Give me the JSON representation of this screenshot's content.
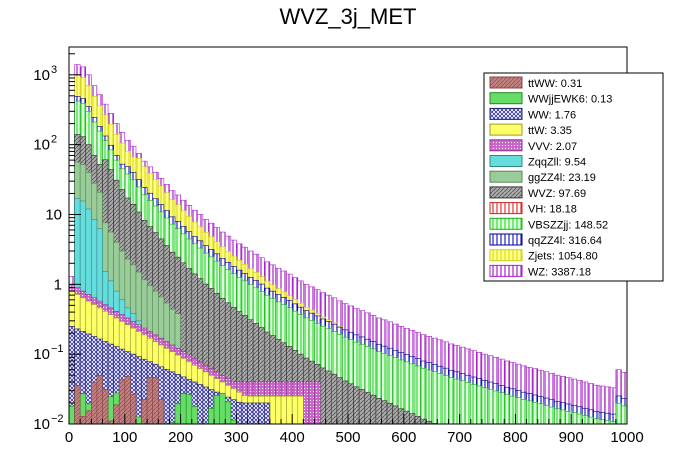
{
  "chart_data": {
    "type": "stacked-histogram",
    "title": "WVZ_3j_MET",
    "xlabel": "",
    "ylabel": "",
    "x_range": [
      0,
      1000
    ],
    "bin_width": 10,
    "y_scale": "log",
    "y_range": [
      0.01,
      2500
    ],
    "x_ticks": [
      "0",
      "100",
      "200",
      "300",
      "400",
      "500",
      "600",
      "700",
      "800",
      "900",
      "1000"
    ],
    "y_ticks": [
      {
        "value": 0.01,
        "label": "10",
        "exp": "−2"
      },
      {
        "value": 0.1,
        "label": "10",
        "exp": "−1"
      },
      {
        "value": 1,
        "label": "1",
        "exp": ""
      },
      {
        "value": 10,
        "label": "10",
        "exp": ""
      },
      {
        "value": 100,
        "label": "10",
        "exp": "2"
      },
      {
        "value": 1000,
        "label": "10",
        "exp": "3"
      }
    ],
    "legend_position": "top-right",
    "grid": false,
    "series": [
      {
        "name": "ttWW: 0.31",
        "color": "#c08080",
        "hatch": "solid-dark"
      },
      {
        "name": "WWjjEWK6: 0.13",
        "color": "#66dd66",
        "hatch": "solid"
      },
      {
        "name": "WW: 1.76",
        "color": "#3333aa",
        "hatch": "cross"
      },
      {
        "name": "ttW: 3.35",
        "color": "#ffff66",
        "hatch": "solid"
      },
      {
        "name": "VVV: 2.07",
        "color": "#cc66cc",
        "hatch": "dots"
      },
      {
        "name": "ZqqZll: 9.54",
        "color": "#66dddd",
        "hatch": "solid"
      },
      {
        "name": "ggZZ4l: 23.19",
        "color": "#99cc99",
        "hatch": "solid"
      },
      {
        "name": "WVZ: 97.69",
        "color": "#aaaaaa",
        "hatch": "diag-dark"
      },
      {
        "name": "VH: 18.18",
        "color": "#ee3333",
        "hatch": "vlines"
      },
      {
        "name": "VBSZZjj: 148.52",
        "color": "#33dd33",
        "hatch": "vlines"
      },
      {
        "name": "qqZZ4l: 316.64",
        "color": "#2222cc",
        "hatch": "vlines"
      },
      {
        "name": "Zjets: 1054.80",
        "color": "#eeee44",
        "hatch": "vlines"
      },
      {
        "name": "WZ: 3387.18",
        "color": "#aa22cc",
        "hatch": "vlines"
      }
    ],
    "stack_totals": [
      1.3,
      1400,
      1300,
      1000,
      700,
      520,
      380,
      280,
      200,
      150,
      115,
      95,
      75,
      58,
      48,
      40,
      33,
      27,
      22,
      19,
      16,
      13.5,
      11.5,
      10,
      8.5,
      7.5,
      6.5,
      5.6,
      4.9,
      4.3,
      3.8,
      3.4,
      3.0,
      2.7,
      2.4,
      2.1,
      1.9,
      1.7,
      1.55,
      1.4,
      1.25,
      1.12,
      1.0,
      0.92,
      0.84,
      0.76,
      0.7,
      0.64,
      0.58,
      0.53,
      0.49,
      0.45,
      0.42,
      0.39,
      0.36,
      0.33,
      0.31,
      0.29,
      0.27,
      0.25,
      0.235,
      0.22,
      0.205,
      0.19,
      0.18,
      0.17,
      0.16,
      0.15,
      0.14,
      0.133,
      0.126,
      0.119,
      0.112,
      0.106,
      0.1,
      0.095,
      0.09,
      0.085,
      0.08,
      0.076,
      0.072,
      0.068,
      0.065,
      0.062,
      0.059,
      0.056,
      0.053,
      0.05,
      0.048,
      0.046,
      0.044,
      0.042,
      0.04,
      0.038,
      0.036,
      0.035,
      0.034,
      0.033,
      0.06,
      0.055
    ]
  }
}
